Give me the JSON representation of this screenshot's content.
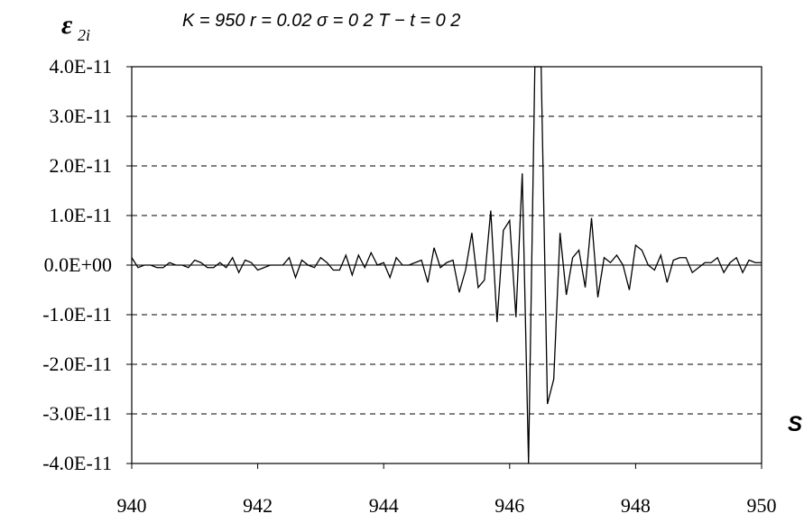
{
  "chart_data": {
    "type": "line",
    "title": "K = 950   r = 0.02   σ = 0 2   T − t = 0 2",
    "ylabel": "ε",
    "ylabel_sub": "2i",
    "xlabel": "S",
    "xlim": [
      940,
      950
    ],
    "ylim": [
      -4e-11,
      4e-11
    ],
    "x_ticks": [
      940,
      942,
      944,
      946,
      948,
      950
    ],
    "x_tick_labels": [
      "940",
      "942",
      "944",
      "946",
      "948",
      "950"
    ],
    "y_ticks": [
      4e-11,
      3e-11,
      2e-11,
      1e-11,
      0,
      -1e-11,
      -2e-11,
      -3e-11,
      -4e-11
    ],
    "y_tick_labels": [
      "4.0E-11",
      "3.0E-11",
      "2.0E-11",
      "1.0E-11",
      "0.0E+00",
      "-1.0E-11",
      "-2.0E-11",
      "-3.0E-11",
      "-4.0E-11"
    ],
    "grid": "horizontal dashed",
    "series": [
      {
        "color": "#000000",
        "x": [
          940.0,
          940.1,
          940.2,
          940.3,
          940.4,
          940.5,
          940.6,
          940.7,
          940.8,
          940.9,
          941.0,
          941.1,
          941.2,
          941.3,
          941.4,
          941.5,
          941.6,
          941.7,
          941.8,
          941.9,
          942.0,
          942.1,
          942.2,
          942.3,
          942.4,
          942.5,
          942.6,
          942.7,
          942.8,
          942.9,
          943.0,
          943.1,
          943.2,
          943.3,
          943.4,
          943.5,
          943.6,
          943.7,
          943.8,
          943.9,
          944.0,
          944.1,
          944.2,
          944.3,
          944.4,
          944.5,
          944.6,
          944.7,
          944.8,
          944.9,
          945.0,
          945.1,
          945.2,
          945.3,
          945.4,
          945.5,
          945.6,
          945.7,
          945.8,
          945.9,
          946.0,
          946.1,
          946.2,
          946.3,
          946.4,
          946.5,
          946.6,
          946.7,
          946.8,
          946.9,
          947.0,
          947.1,
          947.2,
          947.3,
          947.4,
          947.5,
          947.6,
          947.7,
          947.8,
          947.9,
          948.0,
          948.1,
          948.2,
          948.3,
          948.4,
          948.5,
          948.6,
          948.7,
          948.8,
          948.9,
          949.0,
          949.1,
          949.2,
          949.3,
          949.4,
          949.5,
          949.6,
          949.7,
          949.8,
          949.9,
          950.0
        ],
        "values": [
          1.5e-12,
          -5e-13,
          0,
          0,
          -5e-13,
          -5e-13,
          5e-13,
          0,
          0,
          -5e-13,
          1e-12,
          5e-13,
          -5e-13,
          -5e-13,
          5e-13,
          -5e-13,
          1.5e-12,
          -1.5e-12,
          1e-12,
          5e-13,
          -1e-12,
          -5e-13,
          0,
          0,
          0,
          1.5e-12,
          -2.5e-12,
          1e-12,
          0,
          -5e-13,
          1.5e-12,
          5e-13,
          -1e-12,
          -1e-12,
          2e-12,
          -2e-12,
          2e-12,
          -5e-13,
          2.5e-12,
          0,
          5e-13,
          -2.5e-12,
          1.5e-12,
          0,
          0,
          5e-13,
          1e-12,
          -3.5e-12,
          3.5e-12,
          -5e-13,
          5e-13,
          1e-12,
          -5.5e-12,
          -1e-12,
          6.5e-12,
          -4.5e-12,
          -3e-12,
          1.1e-11,
          -1.15e-11,
          7e-12,
          9e-12,
          -1.05e-11,
          1.85e-11,
          -4e-11,
          4e-11,
          4e-11,
          -2.8e-11,
          -2.3e-11,
          6.5e-12,
          -6e-12,
          1.5e-12,
          3e-12,
          -4.5e-12,
          9.5e-12,
          -6.5e-12,
          1.5e-12,
          5e-13,
          2e-12,
          0,
          -5e-12,
          4e-12,
          3e-12,
          0,
          -1e-12,
          2e-12,
          -3.5e-12,
          1e-12,
          1.5e-12,
          1.5e-12,
          -1.5e-12,
          -5e-13,
          5e-13,
          5e-13,
          1.5e-12,
          -1.5e-12,
          5e-13,
          1.5e-12,
          -1.5e-12,
          1e-12,
          5e-13,
          5e-13
        ]
      }
    ]
  }
}
